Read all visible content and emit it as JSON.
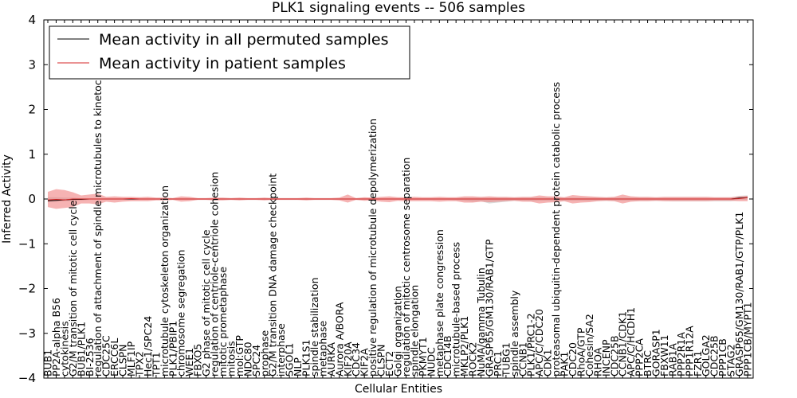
{
  "chart_data": {
    "type": "line",
    "title": "PLK1 signaling events -- 506 samples",
    "xlabel": "Cellular Entities",
    "ylabel": "Inferred Activity",
    "ylim": [
      -4,
      4
    ],
    "yticks": [
      -4,
      -3,
      -2,
      -1,
      0,
      1,
      2,
      3,
      4
    ],
    "ytick_labels": [
      "−4",
      "−3",
      "−2",
      "−1",
      "0",
      "1",
      "2",
      "3",
      "4"
    ],
    "categories": [
      "BUB1",
      "PP2A-alpha B56",
      "cytokinesis",
      "G2/M transition of mitotic cell cycle",
      "BUB1/PLK1",
      "BI-2536",
      "regulation of attachment of spindle microtubules to kinetochore",
      "CDC25C",
      "ERCC6L",
      "CLSPN",
      "MLF1IP",
      "TPX2",
      "Hec1/SPC24",
      "TPT1",
      "microtubule cytoskeleton organization",
      "PLK1/PBIP1",
      "chromosome segregation",
      "WEE1",
      "FBXO5",
      "G2 phase of mitotic cell cycle",
      "regulation of centriole-centriole cohesion",
      "mitotic prometaphase",
      "mitosis",
      "mol:GTP",
      "NDC80",
      "SPC24",
      "prophase",
      "G2/M transition DNA damage checkpoint",
      "interphase",
      "SGOL1",
      "NLP",
      "PLK1S1",
      "spindle stabilization",
      "metaphase",
      "AURKA",
      "Aurora A/BORA",
      "KIF20A",
      "CDC34",
      "KIF2A",
      "positive regulation of microtubule depolymerization",
      "CLSPN",
      "ECT2",
      "Golgi organization",
      "regulation of mitotic centrosome separation",
      "spindle elongation",
      "PKMYT1",
      "NUDC",
      "metaphase plate congression",
      "CDC14B",
      "microtubule-based process",
      "MKLP2/PLK1",
      "ROCK2",
      "NuMA/gamma Tubulin",
      "GRASP65/GM130/RAB1/GTP",
      "PRC1",
      "TUBG1",
      "spindle assembly",
      "CCNB1",
      "PLK1/PRC1-2",
      "APC/C/CDC20",
      "CDK1",
      "proteasomal ubiquitin-dependent protein catabolic process",
      "PAK1",
      "CDC20",
      "RhoA/GTP",
      "Cohesin/SA2",
      "RHOA",
      "INCENP",
      "CDC25B",
      "CCNB1/CDK1",
      "APC/C/HCDH1",
      "PPP2CA",
      "BTRC",
      "GORASP1",
      "FBXW11",
      "RAB1A",
      "PPP2R1A",
      "PPP1R12A",
      "FZR1",
      "GOLGA2",
      "CDC25B",
      "PPP1CB",
      "STAG2",
      "GRASP65/GM130/RAB1/GTP/PLK1",
      "PPP1CB/MYPT1"
    ],
    "series": [
      {
        "name": "Mean activity in all permuted samples",
        "color": "#000000",
        "values": [
          -0.04,
          -0.03,
          -0.02,
          -0.01,
          -0.01,
          0.0,
          0.0,
          0.0,
          0.0,
          0.0,
          0.0,
          0.0,
          0.0,
          0.0,
          0.0,
          0.0,
          0.0,
          0.0,
          0.0,
          0.0,
          0.0,
          0.0,
          0.0,
          0.0,
          0.0,
          0.0,
          0.0,
          0.0,
          0.0,
          0.0,
          0.0,
          0.0,
          0.0,
          0.0,
          0.0,
          0.0,
          0.0,
          0.0,
          0.0,
          0.0,
          0.0,
          0.0,
          0.0,
          0.0,
          0.0,
          0.0,
          0.0,
          0.0,
          0.0,
          0.0,
          0.0,
          0.0,
          0.0,
          0.0,
          0.0,
          0.0,
          0.0,
          0.0,
          0.0,
          0.0,
          0.0,
          0.0,
          0.0,
          0.0,
          0.0,
          0.0,
          0.0,
          0.0,
          0.0,
          0.0,
          0.0,
          0.0,
          0.0,
          0.0,
          0.0,
          0.0,
          0.0,
          0.0,
          0.0,
          0.0,
          0.0,
          0.0,
          0.0,
          0.02,
          0.03
        ]
      },
      {
        "name": "Mean activity in patient samples",
        "color": "#d62728",
        "values": [
          -0.02,
          -0.01,
          -0.02,
          0.0,
          0.0,
          0.0,
          0.0,
          0.0,
          0.0,
          0.0,
          0.01,
          0.0,
          0.0,
          0.0,
          0.0,
          0.0,
          0.0,
          0.0,
          0.0,
          0.0,
          0.0,
          0.0,
          0.0,
          0.0,
          0.0,
          0.0,
          0.0,
          0.0,
          0.0,
          0.0,
          0.0,
          0.0,
          0.0,
          0.0,
          0.0,
          0.0,
          0.0,
          0.0,
          0.0,
          0.0,
          0.0,
          0.0,
          0.0,
          0.0,
          0.0,
          0.0,
          0.0,
          0.0,
          0.0,
          0.0,
          0.0,
          0.0,
          0.0,
          0.0,
          0.0,
          0.0,
          0.0,
          0.0,
          0.0,
          0.0,
          0.0,
          0.0,
          0.0,
          0.0,
          0.0,
          0.0,
          0.0,
          0.0,
          0.0,
          0.0,
          0.0,
          0.0,
          0.0,
          0.0,
          0.0,
          0.0,
          0.0,
          0.0,
          0.0,
          0.0,
          0.0,
          0.0,
          0.0,
          0.01,
          0.03
        ]
      }
    ],
    "patient_band": {
      "color": "#f08080",
      "upper": [
        0.16,
        0.22,
        0.2,
        0.15,
        0.08,
        0.1,
        0.12,
        0.05,
        0.06,
        0.05,
        0.05,
        0.04,
        0.05,
        0.03,
        0.03,
        0.02,
        0.06,
        0.05,
        0.02,
        0.02,
        0.03,
        0.03,
        0.02,
        0.03,
        0.02,
        0.02,
        0.03,
        0.02,
        0.02,
        0.02,
        0.02,
        0.03,
        0.02,
        0.02,
        0.02,
        0.03,
        0.1,
        0.02,
        0.04,
        0.03,
        0.05,
        0.06,
        0.04,
        0.04,
        0.05,
        0.04,
        0.04,
        0.05,
        0.04,
        0.04,
        0.06,
        0.06,
        0.05,
        0.06,
        0.05,
        0.05,
        0.04,
        0.05,
        0.05,
        0.08,
        0.06,
        0.06,
        0.04,
        0.09,
        0.07,
        0.06,
        0.05,
        0.04,
        0.05,
        0.1,
        0.06,
        0.05,
        0.05,
        0.04,
        0.05,
        0.05,
        0.05,
        0.05,
        0.05,
        0.05,
        0.04,
        0.04,
        0.04,
        0.06,
        0.07
      ],
      "lower": [
        -0.18,
        -0.22,
        -0.2,
        -0.18,
        -0.1,
        -0.1,
        -0.12,
        -0.06,
        -0.08,
        -0.06,
        -0.05,
        -0.05,
        -0.05,
        -0.03,
        -0.03,
        -0.02,
        -0.06,
        -0.05,
        -0.02,
        -0.02,
        -0.03,
        -0.03,
        -0.02,
        -0.03,
        -0.02,
        -0.02,
        -0.03,
        -0.02,
        -0.02,
        -0.02,
        -0.02,
        -0.03,
        -0.02,
        -0.02,
        -0.02,
        -0.03,
        -0.08,
        -0.02,
        -0.04,
        -0.03,
        -0.06,
        -0.07,
        -0.04,
        -0.05,
        -0.05,
        -0.05,
        -0.05,
        -0.06,
        -0.05,
        -0.05,
        -0.08,
        -0.08,
        -0.06,
        -0.07,
        -0.06,
        -0.05,
        -0.04,
        -0.06,
        -0.06,
        -0.1,
        -0.08,
        -0.07,
        -0.05,
        -0.1,
        -0.08,
        -0.07,
        -0.05,
        -0.04,
        -0.05,
        -0.1,
        -0.06,
        -0.05,
        -0.05,
        -0.04,
        -0.05,
        -0.05,
        -0.05,
        -0.05,
        -0.05,
        -0.05,
        -0.04,
        -0.04,
        -0.04,
        -0.05,
        -0.05
      ]
    },
    "permuted_band": {
      "color": "#bbbbbb",
      "upper": [
        0.04,
        0.04,
        0.03,
        0.03,
        0.02,
        0.02,
        0.02,
        0.02,
        0.02,
        0.02,
        0.02,
        0.02,
        0.02,
        0.02,
        0.02,
        0.02,
        0.02,
        0.02,
        0.02,
        0.02,
        0.02,
        0.02,
        0.02,
        0.02,
        0.02,
        0.02,
        0.02,
        0.02,
        0.02,
        0.02,
        0.02,
        0.02,
        0.02,
        0.02,
        0.02,
        0.02,
        0.02,
        0.02,
        0.02,
        0.02,
        0.02,
        0.02,
        0.02,
        0.02,
        0.02,
        0.02,
        0.02,
        0.02,
        0.02,
        0.02,
        0.03,
        0.03,
        0.03,
        0.03,
        0.03,
        0.03,
        0.03,
        0.03,
        0.03,
        0.03,
        0.03,
        0.03,
        0.03,
        0.03,
        0.03,
        0.03,
        0.03,
        0.03,
        0.03,
        0.03,
        0.03,
        0.03,
        0.03,
        0.03,
        0.03,
        0.03,
        0.03,
        0.03,
        0.03,
        0.03,
        0.03,
        0.03,
        0.03,
        0.07,
        0.08
      ],
      "lower": [
        -0.06,
        -0.06,
        -0.05,
        -0.04,
        -0.03,
        -0.02,
        -0.02,
        -0.02,
        -0.02,
        -0.02,
        -0.02,
        -0.02,
        -0.02,
        -0.02,
        -0.02,
        -0.02,
        -0.02,
        -0.02,
        -0.02,
        -0.02,
        -0.02,
        -0.02,
        -0.02,
        -0.02,
        -0.02,
        -0.02,
        -0.02,
        -0.02,
        -0.02,
        -0.02,
        -0.02,
        -0.02,
        -0.02,
        -0.02,
        -0.02,
        -0.02,
        -0.02,
        -0.02,
        -0.02,
        -0.02,
        -0.02,
        -0.02,
        -0.02,
        -0.02,
        -0.02,
        -0.02,
        -0.02,
        -0.02,
        -0.02,
        -0.03,
        -0.04,
        -0.06,
        -0.05,
        -0.1,
        -0.08,
        -0.06,
        -0.04,
        -0.04,
        -0.05,
        -0.04,
        -0.04,
        -0.04,
        -0.04,
        -0.04,
        -0.04,
        -0.04,
        -0.04,
        -0.04,
        -0.04,
        -0.04,
        -0.04,
        -0.04,
        -0.04,
        -0.04,
        -0.04,
        -0.05,
        -0.05,
        -0.05,
        -0.05,
        -0.05,
        -0.05,
        -0.05,
        -0.05,
        -0.02,
        -0.02
      ]
    },
    "legend": {
      "position": "top-left",
      "entries": [
        "Mean activity in all permuted samples",
        "Mean activity in patient samples"
      ]
    }
  }
}
